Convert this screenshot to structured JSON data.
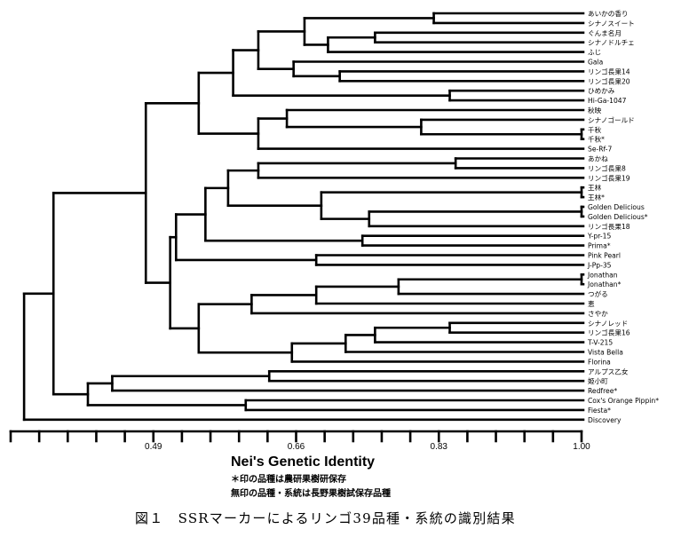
{
  "chart_data": {
    "type": "dendrogram",
    "xlabel": "Nei's Genetic Identity",
    "xlim": [
      0.32,
      1.0
    ],
    "tick_step": 0.034,
    "tick_labels": [
      "0.49",
      "0.66",
      "0.83",
      "1.00"
    ],
    "tick_label_values": [
      0.49,
      0.66,
      0.83,
      1.0
    ],
    "leaves": [
      "あいかの香り",
      "シナノスイート",
      "ぐんま名月",
      "シナノドルチェ",
      "ふじ",
      "Gala",
      "リンゴ長果14",
      "リンゴ長果20",
      "ひめかみ",
      "Hi-Ga-1047",
      "秋映",
      "シナノゴールド",
      "千秋",
      "千秋*",
      "Se-Rf-7",
      "あかね",
      "リンゴ長果8",
      "リンゴ長果19",
      "王林",
      "王林*",
      "Golden Delicious",
      "Golden Delicious*",
      "リンゴ長果18",
      "Y-pr-15",
      "Prima*",
      "Pink Pearl",
      "J-Pp-35",
      "Jonathan",
      "Jonathan*",
      "つがる",
      "恵",
      "さやか",
      "シナノレッド",
      "リンゴ長果16",
      "T-V-215",
      "Vista Bella",
      "Florina",
      "アルプス乙女",
      "姫小町",
      "Redfree*",
      "Cox's Orange Pippin*",
      "Fiesta*",
      "Discovery"
    ],
    "merges": [
      {
        "a": "L0",
        "b": "L1",
        "identity": 0.824
      },
      {
        "a": "L2",
        "b": "L3",
        "identity": 0.754
      },
      {
        "a": "N1",
        "b": "L4",
        "identity": 0.698
      },
      {
        "a": "N0",
        "b": "N2",
        "identity": 0.67
      },
      {
        "a": "L6",
        "b": "L7",
        "identity": 0.712
      },
      {
        "a": "L5",
        "b": "N4",
        "identity": 0.657
      },
      {
        "a": "N3",
        "b": "N5",
        "identity": 0.615
      },
      {
        "a": "L8",
        "b": "L9",
        "identity": 0.843
      },
      {
        "a": "N6",
        "b": "N7",
        "identity": 0.585
      },
      {
        "a": "L12",
        "b": "L13",
        "identity": 1.0
      },
      {
        "a": "L11",
        "b": "N9",
        "identity": 0.809
      },
      {
        "a": "L10",
        "b": "N10",
        "identity": 0.649
      },
      {
        "a": "N11",
        "b": "L14",
        "identity": 0.615
      },
      {
        "a": "N8",
        "b": "N12",
        "identity": 0.544
      },
      {
        "a": "L15",
        "b": "L16",
        "identity": 0.85
      },
      {
        "a": "N14",
        "b": "L17",
        "identity": 0.615
      },
      {
        "a": "L18",
        "b": "L19",
        "identity": 1.0
      },
      {
        "a": "L20",
        "b": "L21",
        "identity": 1.0
      },
      {
        "a": "N17",
        "b": "L22",
        "identity": 0.747
      },
      {
        "a": "N16",
        "b": "N18",
        "identity": 0.69
      },
      {
        "a": "N15",
        "b": "N19",
        "identity": 0.579
      },
      {
        "a": "L23",
        "b": "L24",
        "identity": 0.739
      },
      {
        "a": "N20",
        "b": "N21",
        "identity": 0.552
      },
      {
        "a": "L25",
        "b": "L26",
        "identity": 0.684
      },
      {
        "a": "N22",
        "b": "N23",
        "identity": 0.517
      },
      {
        "a": "L27",
        "b": "L28",
        "identity": 1.0
      },
      {
        "a": "N25",
        "b": "L29",
        "identity": 0.782
      },
      {
        "a": "N26",
        "b": "L30",
        "identity": 0.684
      },
      {
        "a": "N27",
        "b": "L31",
        "identity": 0.607
      },
      {
        "a": "L32",
        "b": "L33",
        "identity": 0.843
      },
      {
        "a": "N29",
        "b": "L34",
        "identity": 0.754
      },
      {
        "a": "N30",
        "b": "L35",
        "identity": 0.719
      },
      {
        "a": "N31",
        "b": "L36",
        "identity": 0.655
      },
      {
        "a": "N28",
        "b": "N32",
        "identity": 0.544
      },
      {
        "a": "N24",
        "b": "N33",
        "identity": 0.51
      },
      {
        "a": "N13",
        "b": "N34",
        "identity": 0.481
      },
      {
        "a": "L37",
        "b": "L38",
        "identity": 0.628
      },
      {
        "a": "N36",
        "b": "L39",
        "identity": 0.441
      },
      {
        "a": "L40",
        "b": "L41",
        "identity": 0.6
      },
      {
        "a": "N37",
        "b": "N38",
        "identity": 0.412
      },
      {
        "a": "N35",
        "b": "N39",
        "identity": 0.371
      },
      {
        "a": "N40",
        "b": "L42",
        "identity": 0.336
      }
    ]
  },
  "notes": {
    "axis_title": "Nei's Genetic Identity",
    "line1": "＊印の品種は農研果樹研保存",
    "line2": "無印の品種・系統は長野果樹試保存品種"
  },
  "caption": "図１　SSRマーカーによるリンゴ39品種・系統の識別結果"
}
